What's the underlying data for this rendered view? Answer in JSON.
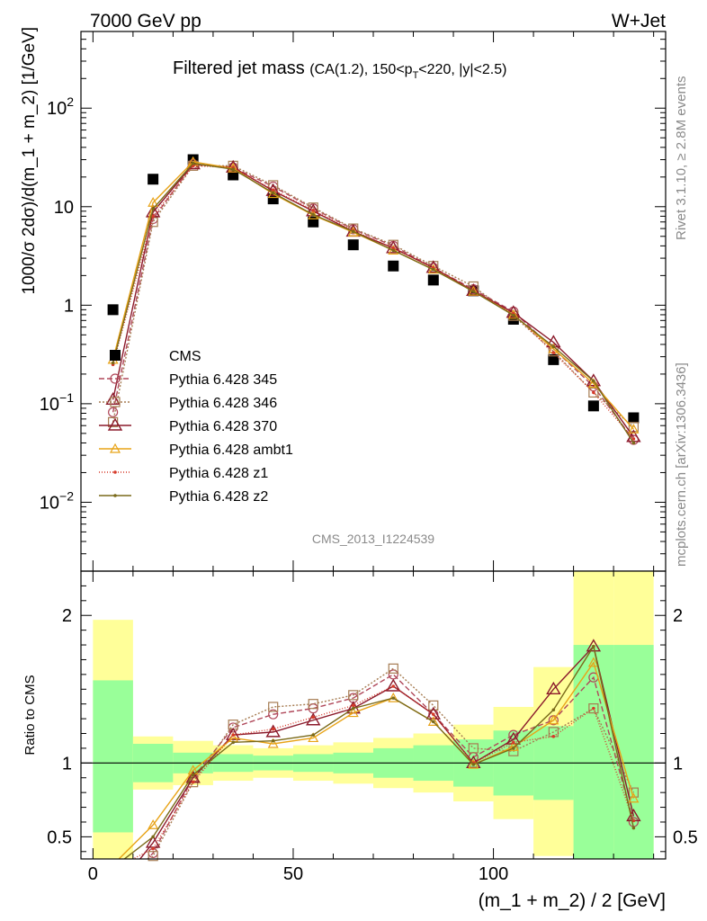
{
  "header": {
    "left": "7000 GeV pp",
    "right": "W+Jet",
    "title_main": "Filtered jet mass",
    "title_sub_pre": "(CA(1.2), 150<p",
    "title_sub_sub": "T",
    "title_sub_post": "<220, |y|<2.5)"
  },
  "side_labels": {
    "rivet": "Rivet 3.1.10, ≥ 2.8M events",
    "mcplots": "mcplots.cern.ch [arXiv:1306.3436]"
  },
  "analysis_id": "CMS_2013_I1224539",
  "colors": {
    "cms": "#000000",
    "p345": "#b0485a",
    "p346": "#a67c52",
    "p370": "#8b1a2b",
    "ambt1": "#e8a317",
    "z1": "#d63a2a",
    "z2": "#7a6a1a",
    "band_green": "#99ff99",
    "band_yellow": "#ffff99"
  },
  "chart_data": [
    {
      "type": "line",
      "panel": "main",
      "ylabel": "1000/σ 2dσ)/d(m_1 + m_2) [1/GeV]",
      "yscale": "log",
      "ylim": [
        0.002,
        600
      ],
      "xlim": [
        -3,
        143
      ],
      "ytick_labels": [
        {
          "value": 100,
          "base": "10",
          "exp": "2"
        },
        {
          "value": 10,
          "base": "10",
          "exp": ""
        },
        {
          "value": 1,
          "base": "1",
          "exp": ""
        },
        {
          "value": 0.1,
          "base": "10",
          "exp": "−1"
        },
        {
          "value": 0.01,
          "base": "10",
          "exp": "−2"
        }
      ],
      "x": [
        5,
        15,
        25,
        35,
        45,
        55,
        65,
        75,
        85,
        95,
        105,
        115,
        125,
        135
      ],
      "series": [
        {
          "name": "CMS",
          "key": "cms",
          "marker": "square",
          "dash": "none",
          "values": [
            0.9,
            19,
            30,
            21,
            12,
            7,
            4.1,
            2.5,
            1.8,
            1.4,
            0.72,
            0.28,
            0.095,
            0.072
          ]
        },
        {
          "name": "Pythia 6.428 345",
          "key": "p345",
          "marker": "circle",
          "dash": "6,3",
          "values": [
            0.082,
            7.5,
            27,
            25,
            16,
            9.6,
            5.9,
            4.0,
            2.4,
            1.45,
            0.86,
            0.36,
            0.15,
            0.043
          ]
        },
        {
          "name": "Pythia 6.428 346",
          "key": "p346",
          "marker": "square-open",
          "dash": "2,2",
          "values": [
            0.065,
            7.0,
            26,
            26,
            16.5,
            9.8,
            6.0,
            4.1,
            2.5,
            1.55,
            0.78,
            0.34,
            0.13,
            0.058
          ]
        },
        {
          "name": "Pythia 6.428 370",
          "key": "p370",
          "marker": "triangle",
          "dash": "none",
          "values": [
            0.11,
            8.8,
            27,
            25,
            14.5,
            9.0,
            5.6,
            3.8,
            2.4,
            1.4,
            0.84,
            0.42,
            0.17,
            0.046
          ]
        },
        {
          "name": "Pythia 6.428 ambt1",
          "key": "ambt1",
          "marker": "triangle-small",
          "dash": "none",
          "values": [
            0.28,
            11,
            28.5,
            24.5,
            13.5,
            8.2,
            5.5,
            3.6,
            2.3,
            1.38,
            0.8,
            0.36,
            0.16,
            0.055
          ]
        },
        {
          "name": "Pythia 6.428 z1",
          "key": "z1",
          "marker": "dot",
          "dash": "1,2",
          "values": [
            0.25,
            8.0,
            26,
            25,
            14.8,
            9.2,
            5.7,
            3.8,
            2.4,
            1.4,
            0.82,
            0.33,
            0.13,
            0.044
          ]
        },
        {
          "name": "Pythia 6.428 z2",
          "key": "z2",
          "marker": "dot",
          "dash": "none",
          "values": [
            0.26,
            9.5,
            27.5,
            24,
            13.8,
            8.3,
            5.6,
            3.6,
            2.3,
            1.38,
            0.79,
            0.38,
            0.17,
            0.04
          ]
        }
      ]
    },
    {
      "type": "line",
      "panel": "ratio",
      "ylabel": "Ratio to CMS",
      "xlabel": "(m_1 + m_2) / 2 [GeV]",
      "ylim": [
        0.35,
        2.3
      ],
      "xlim": [
        -3,
        143
      ],
      "xticks": [
        0,
        50,
        100
      ],
      "yticks": [
        0.5,
        1,
        2
      ],
      "bins": [
        [
          0,
          10
        ],
        [
          10,
          20
        ],
        [
          20,
          30
        ],
        [
          30,
          40
        ],
        [
          40,
          50
        ],
        [
          50,
          60
        ],
        [
          60,
          70
        ],
        [
          70,
          80
        ],
        [
          80,
          90
        ],
        [
          90,
          100
        ],
        [
          100,
          110
        ],
        [
          110,
          120
        ],
        [
          120,
          130
        ],
        [
          130,
          140
        ]
      ],
      "band_green": [
        [
          0.53,
          1.56
        ],
        [
          0.87,
          1.13
        ],
        [
          0.93,
          1.07
        ],
        [
          0.94,
          1.06
        ],
        [
          0.95,
          1.05
        ],
        [
          0.94,
          1.06
        ],
        [
          0.93,
          1.07
        ],
        [
          0.9,
          1.1
        ],
        [
          0.88,
          1.12
        ],
        [
          0.84,
          1.16
        ],
        [
          0.78,
          1.22
        ],
        [
          0.75,
          1.25
        ],
        [
          0.35,
          1.8
        ],
        [
          0.35,
          1.8
        ]
      ],
      "band_yellow": [
        [
          0.35,
          1.97
        ],
        [
          0.82,
          1.18
        ],
        [
          0.85,
          1.15
        ],
        [
          0.88,
          1.12
        ],
        [
          0.9,
          1.1
        ],
        [
          0.88,
          1.12
        ],
        [
          0.86,
          1.14
        ],
        [
          0.83,
          1.17
        ],
        [
          0.8,
          1.2
        ],
        [
          0.74,
          1.26
        ],
        [
          0.62,
          1.38
        ],
        [
          0.37,
          1.65
        ],
        [
          0.35,
          2.3
        ],
        [
          0.35,
          2.3
        ]
      ],
      "series": [
        {
          "name": "Pythia 6.428 345",
          "key": "p345",
          "marker": "circle",
          "dash": "6,3",
          "values": [
            0.09,
            0.39,
            0.9,
            1.24,
            1.33,
            1.37,
            1.44,
            1.6,
            1.33,
            1.04,
            1.19,
            1.29,
            1.58,
            0.6
          ]
        },
        {
          "name": "Pythia 6.428 346",
          "key": "p346",
          "marker": "square-open",
          "dash": "2,2",
          "values": [
            0.07,
            0.37,
            0.87,
            1.26,
            1.38,
            1.4,
            1.46,
            1.64,
            1.39,
            1.1,
            1.08,
            1.21,
            1.37,
            0.8
          ]
        },
        {
          "name": "Pythia 6.428 370",
          "key": "p370",
          "marker": "triangle",
          "dash": "none",
          "values": [
            0.12,
            0.46,
            0.9,
            1.19,
            1.21,
            1.29,
            1.37,
            1.52,
            1.33,
            1.0,
            1.16,
            1.5,
            1.79,
            0.64
          ]
        },
        {
          "name": "Pythia 6.428 ambt1",
          "key": "ambt1",
          "marker": "triangle-small",
          "dash": "none",
          "values": [
            0.31,
            0.58,
            0.95,
            1.17,
            1.13,
            1.17,
            1.34,
            1.44,
            1.28,
            0.99,
            1.11,
            1.29,
            1.68,
            0.76
          ]
        },
        {
          "name": "Pythia 6.428 z1",
          "key": "z1",
          "marker": "dot",
          "dash": "1,2",
          "values": [
            0.28,
            0.42,
            0.87,
            1.19,
            1.23,
            1.31,
            1.39,
            1.52,
            1.33,
            1.0,
            1.14,
            1.18,
            1.37,
            0.61
          ]
        },
        {
          "name": "Pythia 6.428 z2",
          "key": "z2",
          "marker": "dot",
          "dash": "none",
          "values": [
            0.29,
            0.5,
            0.92,
            1.14,
            1.15,
            1.19,
            1.37,
            1.44,
            1.28,
            0.99,
            1.1,
            1.36,
            1.79,
            0.56
          ]
        }
      ]
    }
  ]
}
